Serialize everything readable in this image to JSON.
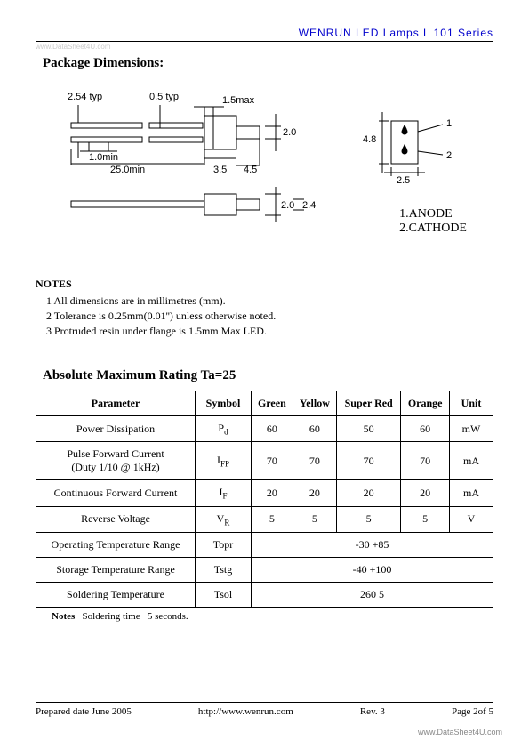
{
  "header": {
    "text": "WENRUN  LED  Lamps     L   101       Series"
  },
  "watermark_top": "www.DataSheet4U.com",
  "section_package": "Package Dimensions:",
  "diagram": {
    "labels": {
      "d254typ": "2.54\ntyp",
      "d05typ": "0.5\ntyp",
      "d15max": "1.5max",
      "d20": "2.0",
      "d10min": "1.0min",
      "d250min": "25.0min",
      "d35": "3.5",
      "d45": "4.5",
      "d20b": "2.0",
      "d24": "2.4",
      "d48": "4.8",
      "d25": "2.5",
      "pin1": "1",
      "pin2": "2"
    }
  },
  "pin_labels": {
    "anode": "1.ANODE",
    "cathode": "2.CATHODE"
  },
  "notes_title": "NOTES",
  "notes": [
    "1    All dimensions are in millimetres (mm).",
    "2    Tolerance is     0.25mm(0.01'') unless otherwise noted.",
    "3    Protruded resin under flange is 1.5mm Max LED."
  ],
  "rating_title": "Absolute Maximum Rating     Ta=25",
  "rating_table": {
    "columns": [
      "Parameter",
      "Symbol",
      "Green",
      "Yellow",
      "Super Red",
      "Orange",
      "Unit"
    ],
    "rows": [
      {
        "param": "Power Dissipation",
        "symbol": "Pd",
        "vals": [
          "60",
          "60",
          "50",
          "60"
        ],
        "unit": "mW",
        "subscript": "d"
      },
      {
        "param": "Pulse Forward Current\n(Duty 1/10 @ 1kHz)",
        "symbol": "IFP",
        "vals": [
          "70",
          "70",
          "70",
          "70"
        ],
        "unit": "mA",
        "subscript": "FP"
      },
      {
        "param": "Continuous Forward Current",
        "symbol": "IF",
        "vals": [
          "20",
          "20",
          "20",
          "20"
        ],
        "unit": "mA",
        "subscript": "F"
      },
      {
        "param": "Reverse Voltage",
        "symbol": "VR",
        "vals": [
          "5",
          "5",
          "5",
          "5"
        ],
        "unit": "V",
        "subscript": "R"
      },
      {
        "param": "Operating Temperature Range",
        "symbol": "Topr",
        "merged": "-30   +85"
      },
      {
        "param": "Storage Temperature Range",
        "symbol": "Tstg",
        "merged": "-40   +100"
      },
      {
        "param": "Soldering Temperature",
        "symbol": "Tsol",
        "merged": "260   5"
      }
    ]
  },
  "table_note": "Notes   Soldering time   5 seconds.",
  "footer": {
    "left": "Prepared date   June 2005",
    "mid": "http://www.wenrun.com",
    "rev": "Rev.   3",
    "page": "Page 2of 5"
  },
  "ds4u": "www.DataSheet4U.com"
}
